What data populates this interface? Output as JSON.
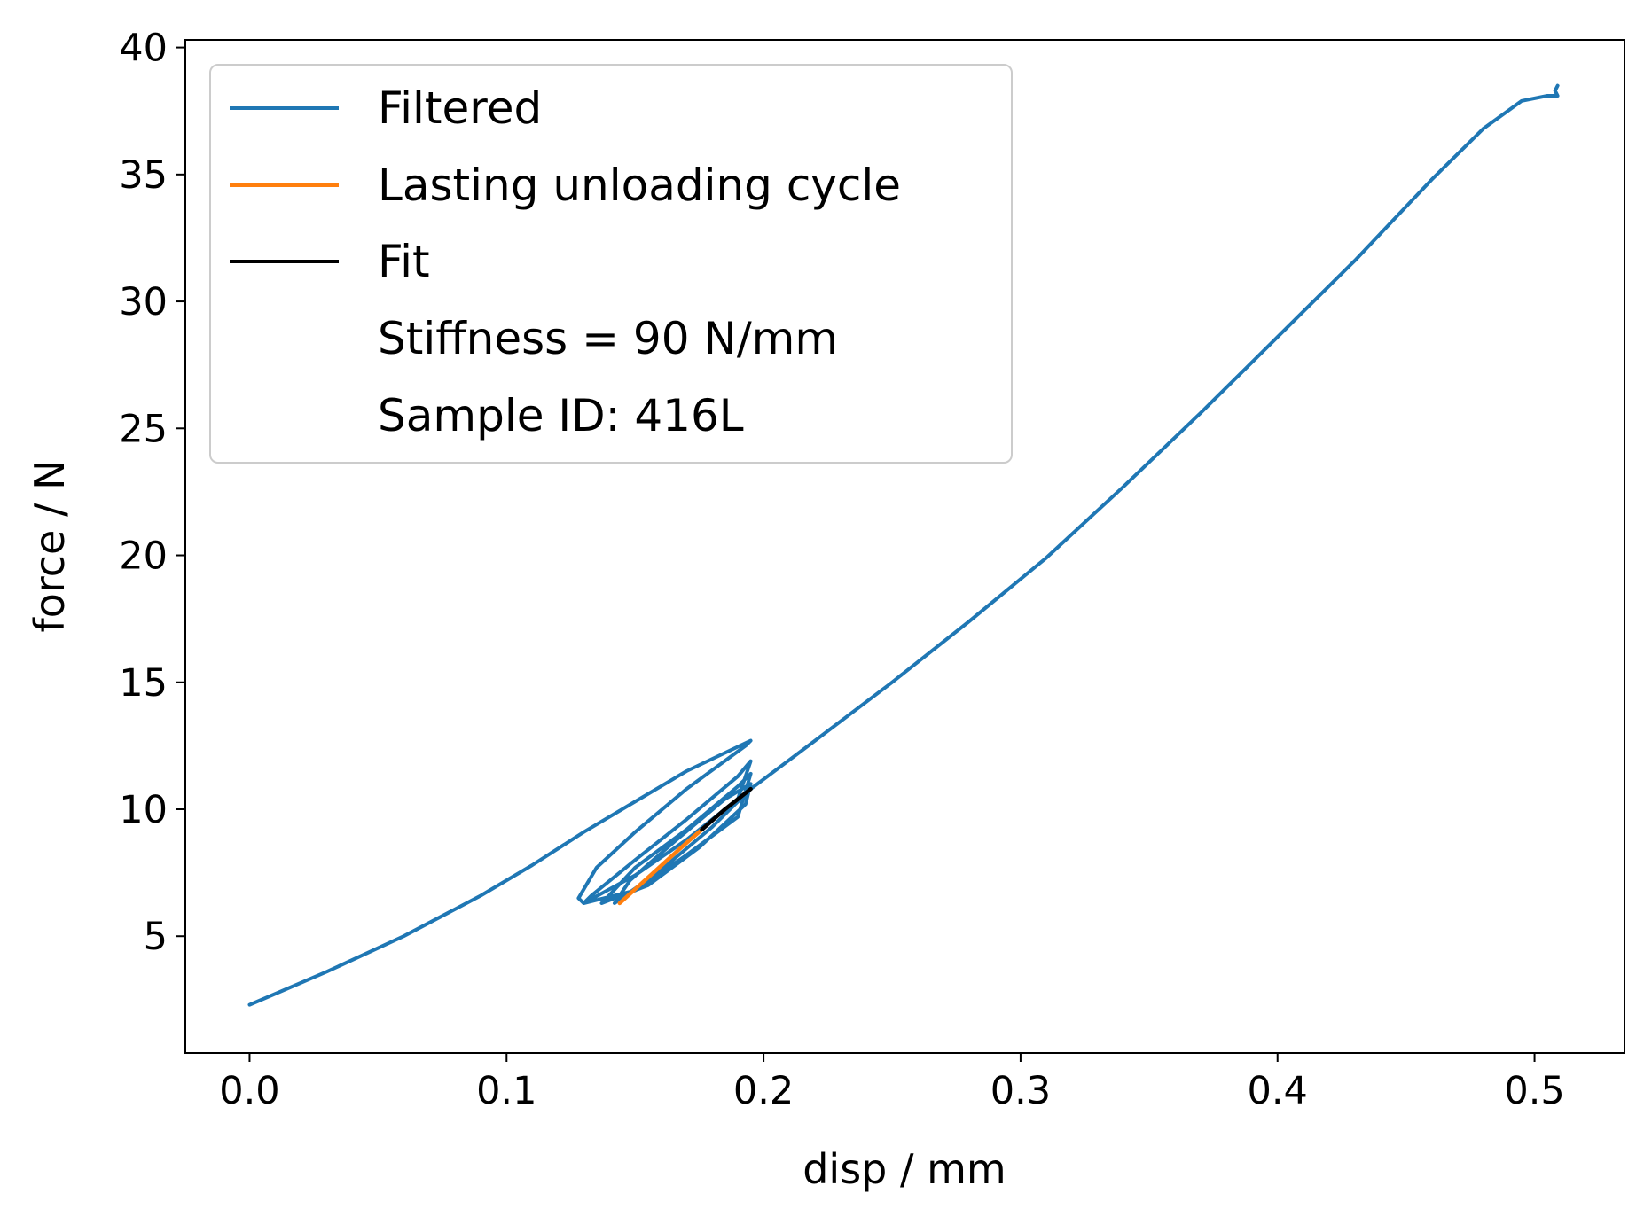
{
  "chart_data": {
    "type": "line",
    "title": "",
    "xlabel": "disp / mm",
    "ylabel": "force / N",
    "xlim": [
      -0.025,
      0.535
    ],
    "ylim": [
      0.4,
      40.3
    ],
    "xticks": [
      0.0,
      0.1,
      0.2,
      0.3,
      0.4,
      0.5
    ],
    "xtick_labels": [
      "0.0",
      "0.1",
      "0.2",
      "0.3",
      "0.4",
      "0.5"
    ],
    "yticks": [
      5,
      10,
      15,
      20,
      25,
      30,
      35,
      40
    ],
    "ytick_labels": [
      "5",
      "10",
      "15",
      "20",
      "25",
      "30",
      "35",
      "40"
    ],
    "grid": false,
    "legend_position": "top-left",
    "legend": [
      {
        "label": "Filtered",
        "color": "#1f77b4",
        "has_line": true
      },
      {
        "label": "Lasting unloading cycle",
        "color": "#ff7f0e",
        "has_line": true
      },
      {
        "label": "Fit",
        "color": "#000000",
        "has_line": true
      },
      {
        "label": "Stiffness = 90 N/mm",
        "has_line": false
      },
      {
        "label": "Sample ID: 416L",
        "has_line": false
      }
    ],
    "series": [
      {
        "name": "Filtered",
        "color": "#1f77b4",
        "x": [
          0.0,
          0.03,
          0.06,
          0.09,
          0.11,
          0.13,
          0.15,
          0.17,
          0.195,
          0.193,
          0.17,
          0.15,
          0.135,
          0.128,
          0.13,
          0.15,
          0.17,
          0.19,
          0.195,
          0.19,
          0.17,
          0.15,
          0.133,
          0.13,
          0.15,
          0.17,
          0.19,
          0.195,
          0.19,
          0.17,
          0.15,
          0.138,
          0.137,
          0.155,
          0.175,
          0.193,
          0.195,
          0.185,
          0.165,
          0.148,
          0.142,
          0.16,
          0.18,
          0.195,
          0.22,
          0.25,
          0.28,
          0.31,
          0.34,
          0.37,
          0.4,
          0.43,
          0.46,
          0.48,
          0.495,
          0.505,
          0.509,
          0.508,
          0.509
        ],
        "y": [
          2.3,
          3.6,
          5.0,
          6.6,
          7.8,
          9.1,
          10.3,
          11.5,
          12.7,
          12.5,
          10.8,
          9.1,
          7.7,
          6.5,
          6.3,
          7.4,
          8.8,
          10.4,
          11.9,
          11.3,
          9.6,
          8.0,
          6.6,
          6.3,
          6.8,
          8.2,
          9.7,
          11.4,
          10.9,
          9.2,
          7.7,
          6.4,
          6.3,
          7.0,
          8.5,
          10.2,
          11.0,
          10.4,
          8.7,
          7.2,
          6.3,
          7.6,
          9.3,
          10.8,
          12.7,
          15.0,
          17.4,
          19.9,
          22.7,
          25.6,
          28.6,
          31.6,
          34.8,
          36.8,
          37.9,
          38.1,
          38.1,
          38.3,
          38.5
        ]
      },
      {
        "name": "Lasting unloading cycle",
        "color": "#ff7f0e",
        "x": [
          0.144,
          0.156,
          0.168,
          0.176
        ],
        "y": [
          6.3,
          7.4,
          8.5,
          9.2
        ]
      },
      {
        "name": "Fit",
        "color": "#000000",
        "x": [
          0.176,
          0.185,
          0.195
        ],
        "y": [
          9.2,
          10.0,
          10.8
        ]
      }
    ]
  }
}
